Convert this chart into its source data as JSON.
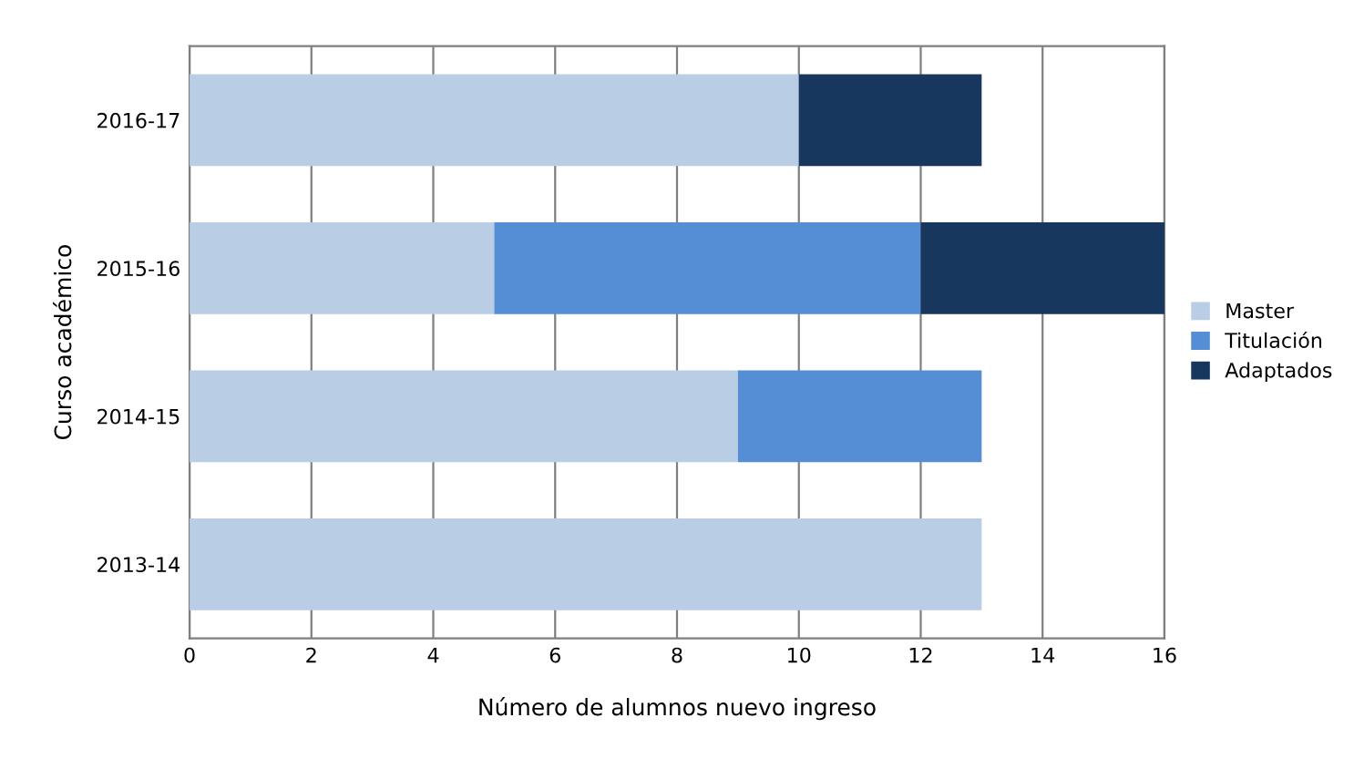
{
  "chart_data": {
    "type": "bar",
    "orientation": "horizontal",
    "stacked": true,
    "categories": [
      "2016-17",
      "2015-16",
      "2014-15",
      "2013-14"
    ],
    "series": [
      {
        "name": "Master",
        "color": "#b9cde5",
        "values": [
          10,
          5,
          9,
          13
        ]
      },
      {
        "name": "Titulación",
        "color": "#558ed5",
        "values": [
          null,
          7,
          4,
          null
        ]
      },
      {
        "name": "Adaptados",
        "color": "#17375e",
        "values": [
          3,
          4,
          null,
          null
        ]
      }
    ],
    "xlabel": "Número de alumnos nuevo ingreso",
    "ylabel": "Curso académico",
    "xlim": [
      0,
      16
    ],
    "xticks": [
      0,
      2,
      4,
      6,
      8,
      10,
      12,
      14,
      16
    ],
    "grid": "x",
    "legend": "right"
  }
}
